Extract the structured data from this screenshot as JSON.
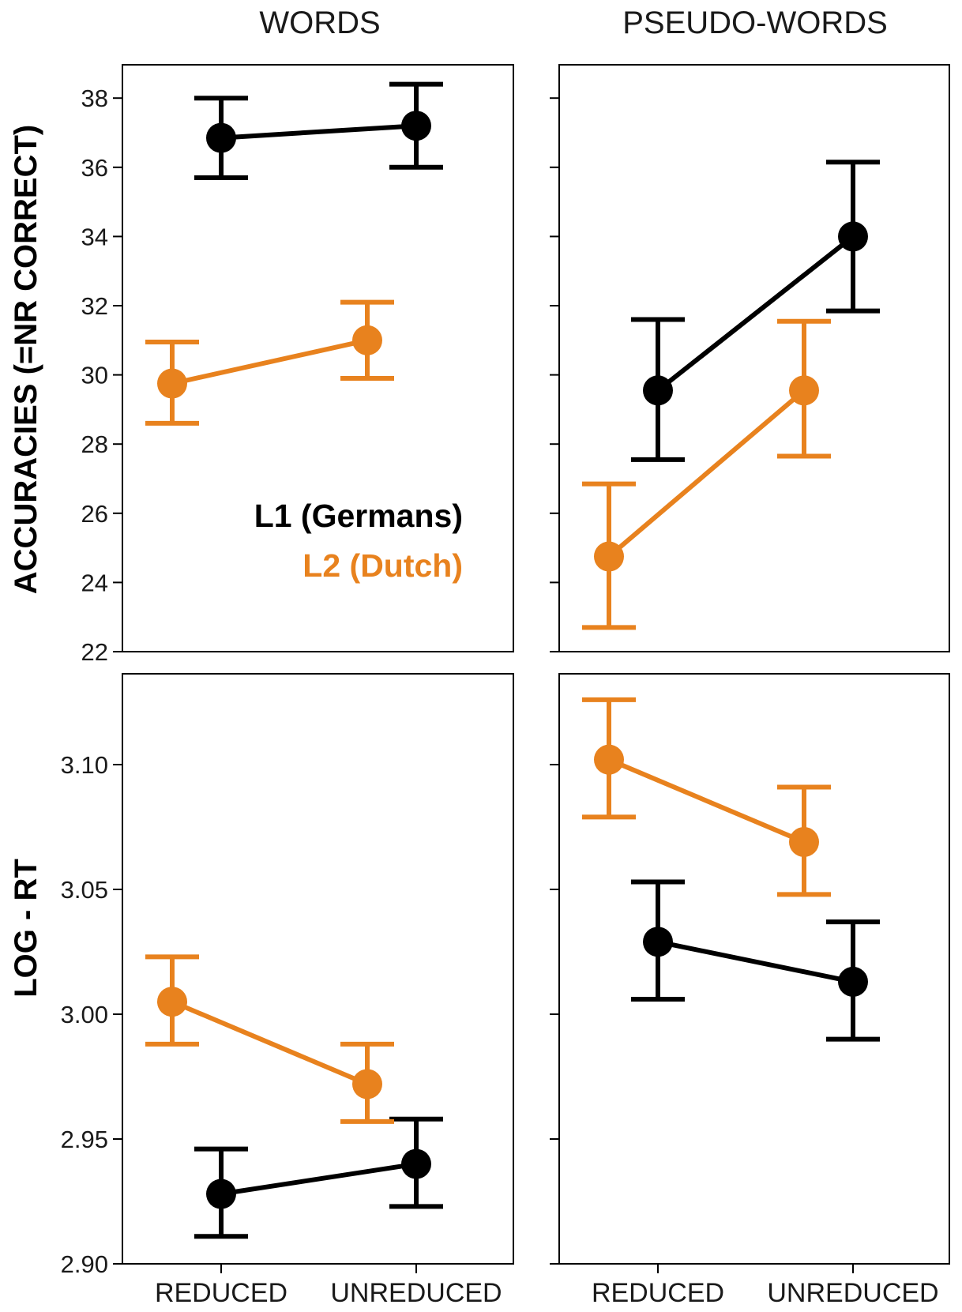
{
  "colors": {
    "L1": "#000000",
    "L2": "#e8821e"
  },
  "columns": [
    "WORDS",
    "PSEUDO-WORDS"
  ],
  "row_titles": [
    "ACCURACIES (=NR CORRECT)",
    "LOG - RT"
  ],
  "legend": {
    "l1": "L1 (Germans)",
    "l2": "L2 (Dutch)"
  },
  "chart_data": [
    {
      "type": "line",
      "panel": "accuracies-words",
      "title": "WORDS",
      "ylabel": "ACCURACIES (=NR CORRECT)",
      "xlabel": "",
      "categories": [
        "REDUCED",
        "UNREDUCED"
      ],
      "ylim": [
        22,
        39
      ],
      "yticks": [
        22,
        24,
        26,
        28,
        30,
        32,
        34,
        36,
        38
      ],
      "series": [
        {
          "name": "L1 (Germans)",
          "group": "L1",
          "values": [
            36.85,
            37.2
          ],
          "err_low": [
            35.7,
            36.0
          ],
          "err_high": [
            38.0,
            38.4
          ]
        },
        {
          "name": "L2 (Dutch)",
          "group": "L2",
          "values": [
            29.75,
            31.0
          ],
          "err_low": [
            28.6,
            29.9
          ],
          "err_high": [
            30.95,
            32.1
          ]
        }
      ]
    },
    {
      "type": "line",
      "panel": "accuracies-pseudo",
      "title": "PSEUDO-WORDS",
      "ylabel": "",
      "xlabel": "",
      "categories": [
        "REDUCED",
        "UNREDUCED"
      ],
      "ylim": [
        22,
        39
      ],
      "yticks": [
        22,
        24,
        26,
        28,
        30,
        32,
        34,
        36,
        38
      ],
      "series": [
        {
          "name": "L1 (Germans)",
          "group": "L1",
          "values": [
            29.55,
            34.0
          ],
          "err_low": [
            27.55,
            31.85
          ],
          "err_high": [
            31.6,
            36.15
          ]
        },
        {
          "name": "L2 (Dutch)",
          "group": "L2",
          "values": [
            24.75,
            29.55
          ],
          "err_low": [
            22.7,
            27.65
          ],
          "err_high": [
            26.85,
            31.55
          ]
        }
      ]
    },
    {
      "type": "line",
      "panel": "logrt-words",
      "title": "",
      "ylabel": "LOG - RT",
      "xlabel": "",
      "categories": [
        "REDUCED",
        "UNREDUCED"
      ],
      "ylim": [
        2.9,
        3.135
      ],
      "yticks": [
        2.9,
        2.95,
        3.0,
        3.05,
        3.1
      ],
      "ytick_labels": [
        "2.90",
        "2.95",
        "3.00",
        "3.05",
        "3.10"
      ],
      "series": [
        {
          "name": "L1 (Germans)",
          "group": "L1",
          "values": [
            2.928,
            2.94
          ],
          "err_low": [
            2.911,
            2.923
          ],
          "err_high": [
            2.946,
            2.958
          ]
        },
        {
          "name": "L2 (Dutch)",
          "group": "L2",
          "values": [
            3.005,
            2.972
          ],
          "err_low": [
            2.988,
            2.957
          ],
          "err_high": [
            3.023,
            2.988
          ]
        }
      ]
    },
    {
      "type": "line",
      "panel": "logrt-pseudo",
      "title": "",
      "ylabel": "",
      "xlabel": "",
      "categories": [
        "REDUCED",
        "UNREDUCED"
      ],
      "ylim": [
        2.9,
        3.135
      ],
      "yticks": [
        2.9,
        2.95,
        3.0,
        3.05,
        3.1
      ],
      "series": [
        {
          "name": "L1 (Germans)",
          "group": "L1",
          "values": [
            3.029,
            3.013
          ],
          "err_low": [
            3.006,
            2.99
          ],
          "err_high": [
            3.053,
            3.037
          ]
        },
        {
          "name": "L2 (Dutch)",
          "group": "L2",
          "values": [
            3.102,
            3.069
          ],
          "err_low": [
            3.079,
            3.048
          ],
          "err_high": [
            3.126,
            3.091
          ]
        }
      ]
    }
  ]
}
